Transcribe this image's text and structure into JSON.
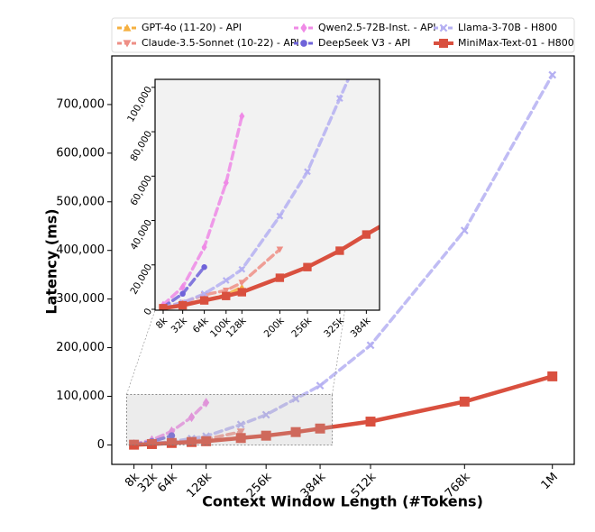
{
  "chart_data": {
    "type": "line",
    "xlabel": "Context Window Length (#Tokens)",
    "ylabel": "Latency (ms)",
    "xscale": {
      "type": "pow",
      "exponent": 0.8
    },
    "legend": "top",
    "xlim": [
      -13500,
      1090000
    ],
    "ylim": [
      -40000,
      800000
    ],
    "xticks": [
      {
        "value": 8000,
        "label": "8k"
      },
      {
        "value": 32000,
        "label": "32k"
      },
      {
        "value": 64000,
        "label": "64k"
      },
      {
        "value": 128000,
        "label": "128k"
      },
      {
        "value": 256000,
        "label": "256k"
      },
      {
        "value": 384000,
        "label": "384k"
      },
      {
        "value": 512000,
        "label": "512k"
      },
      {
        "value": 768000,
        "label": "768k"
      },
      {
        "value": 1024000,
        "label": "1M"
      }
    ],
    "yticks": [
      0,
      {
        "value": 100000,
        "label": "100,000"
      },
      {
        "value": 200000,
        "label": "200,000"
      },
      {
        "value": 300000,
        "label": "300,000"
      },
      {
        "value": 400000,
        "label": "400,000"
      },
      {
        "value": 500000,
        "label": "500,000"
      },
      {
        "value": 600000,
        "label": "600,000"
      },
      {
        "value": 700000,
        "label": "700,000"
      }
    ],
    "inset": {
      "xlim": [
        800,
        414000
      ],
      "ylim": [
        -400,
        103600
      ],
      "xticks": [
        {
          "value": 8000,
          "label": "8k"
        },
        {
          "value": 32000,
          "label": "32k"
        },
        {
          "value": 64000,
          "label": "64k"
        },
        {
          "value": 100000,
          "label": "100k"
        },
        {
          "value": 128000,
          "label": "128k"
        },
        {
          "value": 200000,
          "label": "200k"
        },
        {
          "value": 256000,
          "label": "256k"
        },
        {
          "value": 325000,
          "label": "325k"
        },
        {
          "value": 384000,
          "label": "384k"
        }
      ],
      "yticks": [
        0,
        {
          "value": 20000,
          "label": "20,000"
        },
        {
          "value": 40000,
          "label": "40,000"
        },
        {
          "value": 60000,
          "label": "60,000"
        },
        {
          "value": 80000,
          "label": "80,000"
        },
        {
          "value": 100000,
          "label": "100,000"
        }
      ]
    },
    "series": [
      {
        "name": "GPT-4o (11-20) - API",
        "color": "#f5b041",
        "marker": "triangle-up",
        "dashed": true,
        "x": [
          8000,
          32000,
          64000,
          100000,
          128000
        ],
        "values": [
          800,
          2000,
          4000,
          6500,
          10000
        ]
      },
      {
        "name": "Claude-3.5-Sonnet (10-22) - API",
        "color": "#ee8f86",
        "marker": "triangle-down",
        "dashed": true,
        "x": [
          8000,
          32000,
          64000,
          100000,
          128000,
          200000
        ],
        "values": [
          1000,
          3000,
          6500,
          8500,
          12000,
          27000
        ]
      },
      {
        "name": "Qwen2.5-72B-Inst. - API",
        "color": "#ef8ae6",
        "marker": "diamond",
        "dashed": true,
        "x": [
          8000,
          32000,
          64000,
          100000,
          128000
        ],
        "values": [
          2000,
          10000,
          28000,
          57000,
          87000
        ]
      },
      {
        "name": "DeepSeek V3 - API",
        "color": "#6f63d9",
        "marker": "circle",
        "dashed": true,
        "x": [
          8000,
          32000,
          64000
        ],
        "values": [
          1000,
          7000,
          19000
        ]
      },
      {
        "name": "Llama-3-70B - H800",
        "color": "#b5b0f2",
        "marker": "x",
        "dashed": true,
        "x": [
          8000,
          32000,
          64000,
          100000,
          128000,
          200000,
          256000,
          325000,
          384000,
          512000,
          768000,
          1024000
        ],
        "values": [
          1000,
          3000,
          7000,
          13000,
          18000,
          42000,
          62000,
          95000,
          122000,
          205000,
          441000,
          761000
        ]
      },
      {
        "name": "MiniMax-Text-01 - H800",
        "color": "#d9503f",
        "marker": "square",
        "dashed": false,
        "x": [
          8000,
          32000,
          64000,
          100000,
          128000,
          200000,
          256000,
          325000,
          384000,
          512000,
          768000,
          1024000
        ],
        "values": [
          500,
          1800,
          4000,
          6000,
          7700,
          14200,
          19000,
          26400,
          33700,
          48000,
          89000,
          141000
        ]
      }
    ]
  }
}
